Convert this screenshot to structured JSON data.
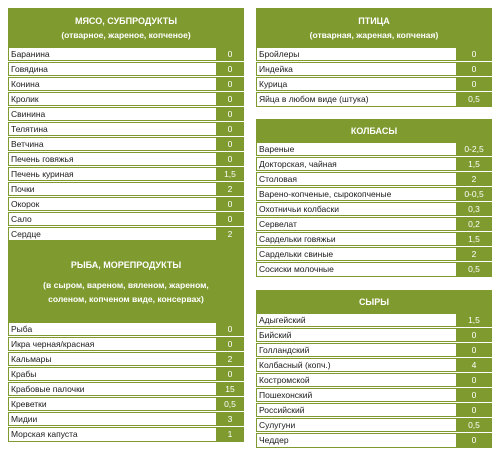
{
  "tables": {
    "meat": {
      "title": "МЯСО, СУБПРОДУКТЫ",
      "subtitle": "(отварное, жареное, копченое)",
      "rows": [
        {
          "name": "Баранина",
          "value": "0"
        },
        {
          "name": "Говядина",
          "value": "0"
        },
        {
          "name": "Конина",
          "value": "0"
        },
        {
          "name": "Кролик",
          "value": "0"
        },
        {
          "name": "Свинина",
          "value": "0"
        },
        {
          "name": "Телятина",
          "value": "0"
        },
        {
          "name": "Ветчина",
          "value": "0"
        },
        {
          "name": "Печень говяжья",
          "value": "0"
        },
        {
          "name": "Печень куриная",
          "value": "1,5"
        },
        {
          "name": "Почки",
          "value": "2"
        },
        {
          "name": "Окорок",
          "value": "0"
        },
        {
          "name": "Сало",
          "value": "0"
        },
        {
          "name": "Сердце",
          "value": "2"
        },
        {
          "name": "Язык",
          "value": "2"
        }
      ]
    },
    "poultry": {
      "title": "ПТИЦА",
      "subtitle": "(отварная, жареная, копченая)",
      "rows": [
        {
          "name": "Бройлеры",
          "value": "0"
        },
        {
          "name": "Индейка",
          "value": "0"
        },
        {
          "name": "Курица",
          "value": "0"
        },
        {
          "name": "Яйца в любом виде (штука)",
          "value": "0,5"
        }
      ]
    },
    "sausages": {
      "title": "КОЛБАСЫ",
      "rows": [
        {
          "name": "Вареные",
          "value": "0-2,5"
        },
        {
          "name": "Докторская, чайная",
          "value": "1,5"
        },
        {
          "name": "Столовая",
          "value": "2"
        },
        {
          "name": "Варено-копченые, сырокопченые",
          "value": "0-0,5"
        },
        {
          "name": "Охотничьи колбаски",
          "value": "0,3"
        },
        {
          "name": "Сервелат",
          "value": "0,2"
        },
        {
          "name": "Сардельки говяжьи",
          "value": "1,5"
        },
        {
          "name": "Сардельки свиные",
          "value": "2"
        },
        {
          "name": "Сосиски молочные",
          "value": "0,5"
        }
      ]
    },
    "fish": {
      "title": "РЫБА, МОРЕПРОДУКТЫ",
      "subtitle_lines": [
        "(в сыром, вареном, вяленом, жареном,",
        "соленом, копченом виде, консервах)"
      ],
      "rows": [
        {
          "name": "Рыба",
          "value": "0"
        },
        {
          "name": "Икра черная/красная",
          "value": "0"
        },
        {
          "name": "Кальмары",
          "value": "2"
        },
        {
          "name": "Крабы",
          "value": "0"
        },
        {
          "name": "Крабовые палочки",
          "value": "15"
        },
        {
          "name": "Креветки",
          "value": "0,5"
        },
        {
          "name": "Мидии",
          "value": "3"
        },
        {
          "name": "Морская капуста",
          "value": "1"
        }
      ]
    },
    "cheese": {
      "title": "СЫРЫ",
      "rows": [
        {
          "name": "Адыгейский",
          "value": "1,5"
        },
        {
          "name": "Бийский",
          "value": "0"
        },
        {
          "name": "Голландский",
          "value": "0"
        },
        {
          "name": "Колбасный (копч.)",
          "value": "4"
        },
        {
          "name": "Костромской",
          "value": "0"
        },
        {
          "name": "Пошехонский",
          "value": "0"
        },
        {
          "name": "Российский",
          "value": "0"
        },
        {
          "name": "Сулугуни",
          "value": "0,5"
        },
        {
          "name": "Чеддер",
          "value": "0"
        }
      ]
    }
  }
}
